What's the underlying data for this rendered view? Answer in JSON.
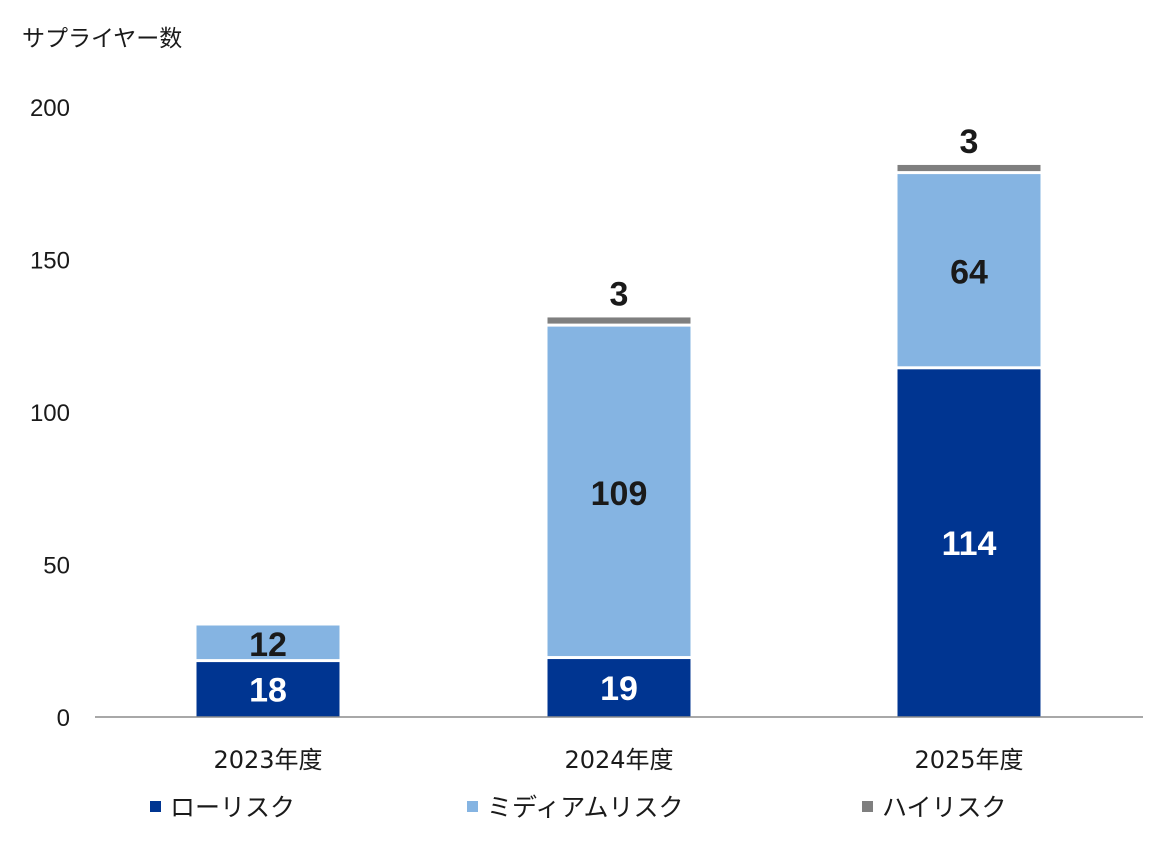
{
  "chart_data": {
    "type": "bar",
    "stacked": true,
    "ylabel": "サプライヤー数",
    "xlabel": "",
    "ylim": [
      0,
      200
    ],
    "yticks": [
      "0",
      "50",
      "100",
      "150",
      "200"
    ],
    "grid": false,
    "legend_position": "bottom",
    "categories": [
      "2023年度",
      "2024年度",
      "2025年度"
    ],
    "series": [
      {
        "name": "ローリスク",
        "color": "#003591",
        "label_color": "#ffffff",
        "values": [
          18,
          19,
          114
        ]
      },
      {
        "name": "ミディアムリスク",
        "color": "#85b4e2",
        "label_color": "#1a1a1a",
        "values": [
          12,
          109,
          64
        ]
      },
      {
        "name": "ハイリスク",
        "color": "#7f7f7f",
        "label_color": "#1a1a1a",
        "values": [
          0,
          3,
          3
        ]
      }
    ]
  }
}
